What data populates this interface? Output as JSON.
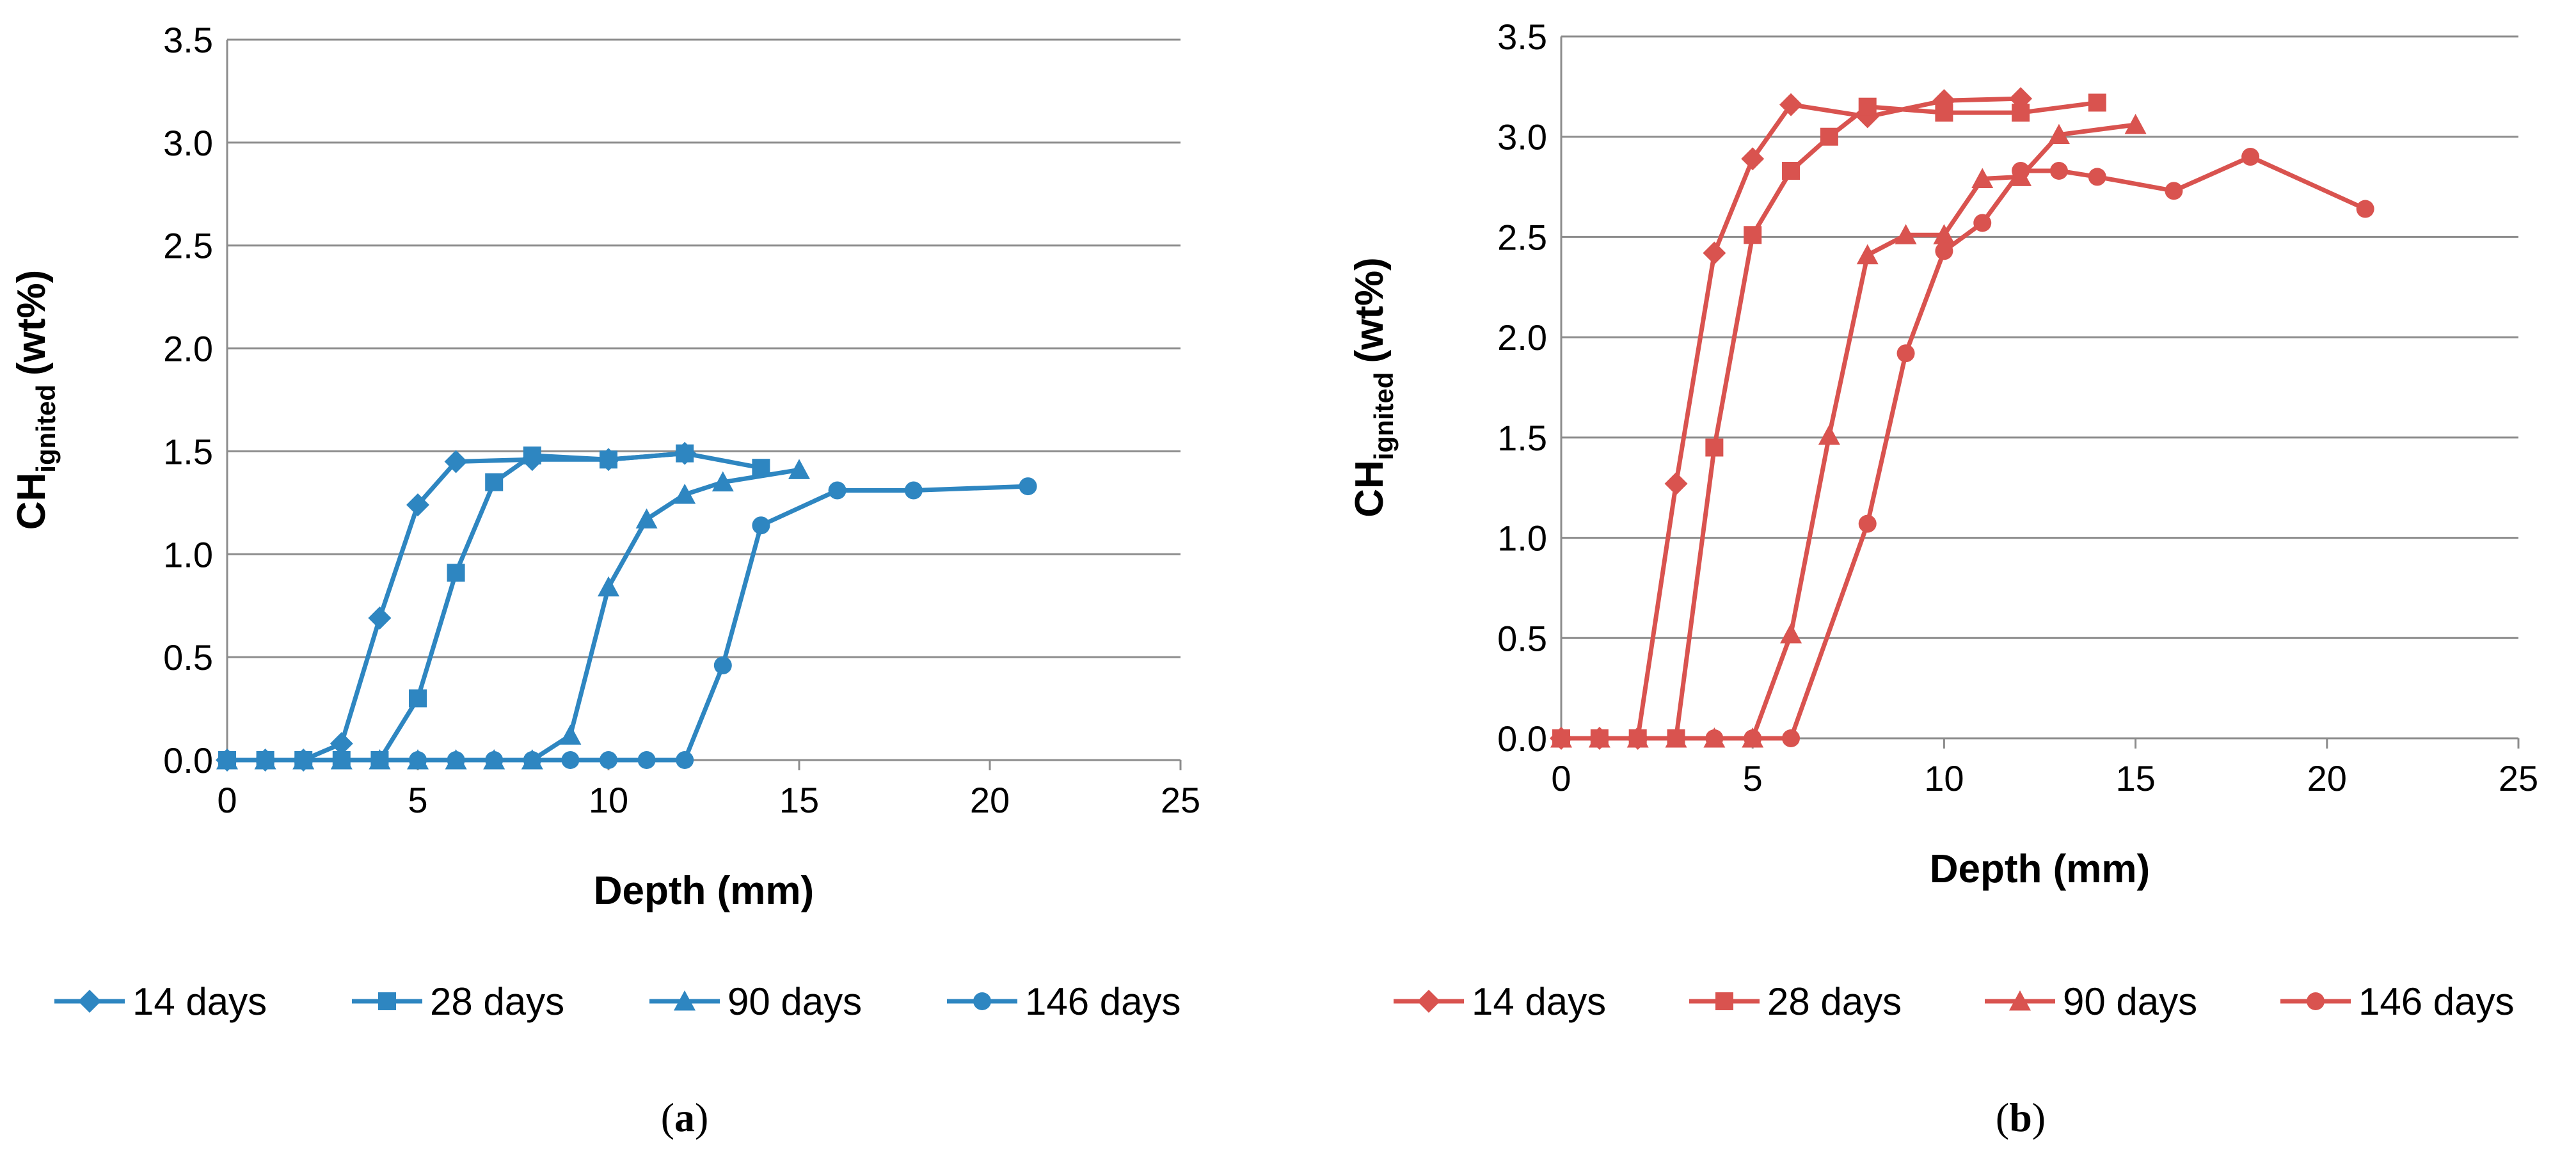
{
  "chart_data": [
    {
      "type": "line",
      "panel_label": "a",
      "color": "#2E86C1",
      "xlabel": "Depth (mm)",
      "ylabel_main": "CH",
      "ylabel_sub": "ignited",
      "ylabel_unit": "(wt%)",
      "xlim": [
        0,
        25
      ],
      "ylim": [
        0,
        3.5
      ],
      "x_ticks": [
        "0",
        "5",
        "10",
        "15",
        "20",
        "25"
      ],
      "y_ticks": [
        "0.0",
        "0.5",
        "1.0",
        "1.5",
        "2.0",
        "2.5",
        "3.0",
        "3.5"
      ],
      "grid": "horizontal",
      "legend_position": "bottom",
      "series": [
        {
          "name": "14 days",
          "marker": "diamond",
          "x": [
            0,
            1,
            2,
            3,
            4,
            5,
            6,
            8,
            10,
            12
          ],
          "y": [
            0.0,
            0.0,
            0.0,
            0.08,
            0.69,
            1.24,
            1.45,
            1.46,
            1.46,
            1.49
          ]
        },
        {
          "name": "28 days",
          "marker": "square",
          "x": [
            0,
            1,
            2,
            3,
            4,
            5,
            6,
            7,
            8,
            10,
            12,
            14
          ],
          "y": [
            0.0,
            0.0,
            0.0,
            0.0,
            0.0,
            0.3,
            0.91,
            1.35,
            1.48,
            1.46,
            1.49,
            1.42
          ]
        },
        {
          "name": "90 days",
          "marker": "triangle",
          "x": [
            0,
            1,
            2,
            3,
            4,
            5,
            6,
            7,
            8,
            9,
            10,
            11,
            12,
            13,
            15
          ],
          "y": [
            0.0,
            0.0,
            0.0,
            0.0,
            0.0,
            0.0,
            0.0,
            0.0,
            0.0,
            0.12,
            0.84,
            1.17,
            1.29,
            1.35,
            1.41
          ]
        },
        {
          "name": "146 days",
          "marker": "circle",
          "x": [
            0,
            1,
            2,
            3,
            4,
            5,
            6,
            7,
            8,
            9,
            10,
            11,
            12,
            13,
            14,
            16,
            18,
            21
          ],
          "y": [
            0.0,
            0.0,
            0.0,
            0.0,
            0.0,
            0.0,
            0.0,
            0.0,
            0.0,
            0.0,
            0.0,
            0.0,
            0.0,
            0.46,
            1.14,
            1.31,
            1.31,
            1.33
          ]
        }
      ]
    },
    {
      "type": "line",
      "panel_label": "b",
      "color": "#D9534F",
      "xlabel": "Depth (mm)",
      "ylabel_main": "CH",
      "ylabel_sub": "ignited",
      "ylabel_unit": "(wt%)",
      "xlim": [
        0,
        25
      ],
      "ylim": [
        0,
        3.5
      ],
      "x_ticks": [
        "0",
        "5",
        "10",
        "15",
        "20",
        "25"
      ],
      "y_ticks": [
        "0.0",
        "0.5",
        "1.0",
        "1.5",
        "2.0",
        "2.5",
        "3.0",
        "3.5"
      ],
      "grid": "horizontal",
      "legend_position": "bottom",
      "series": [
        {
          "name": "14 days",
          "marker": "diamond",
          "x": [
            0,
            1,
            2,
            3,
            4,
            5,
            6,
            8,
            10,
            12
          ],
          "y": [
            0.0,
            0.0,
            0.0,
            1.27,
            2.42,
            2.89,
            3.16,
            3.1,
            3.18,
            3.19
          ]
        },
        {
          "name": "28 days",
          "marker": "square",
          "x": [
            0,
            1,
            2,
            3,
            4,
            5,
            6,
            7,
            8,
            10,
            12,
            14
          ],
          "y": [
            0.0,
            0.0,
            0.0,
            0.0,
            1.45,
            2.51,
            2.83,
            3.0,
            3.15,
            3.12,
            3.12,
            3.17
          ]
        },
        {
          "name": "90 days",
          "marker": "triangle",
          "x": [
            0,
            1,
            2,
            3,
            4,
            5,
            6,
            7,
            8,
            9,
            10,
            11,
            12,
            13,
            15
          ],
          "y": [
            0.0,
            0.0,
            0.0,
            0.0,
            0.0,
            0.0,
            0.52,
            1.51,
            2.41,
            2.51,
            2.51,
            2.79,
            2.8,
            3.01,
            3.06
          ]
        },
        {
          "name": "146 days",
          "marker": "circle",
          "x": [
            0,
            1,
            2,
            3,
            4,
            5,
            6,
            8,
            9,
            10,
            11,
            12,
            13,
            14,
            16,
            18,
            21
          ],
          "y": [
            0.0,
            0.0,
            0.0,
            0.0,
            0.0,
            0.0,
            0.0,
            1.07,
            1.92,
            2.43,
            2.57,
            2.83,
            2.83,
            2.8,
            2.73,
            2.9,
            2.64
          ]
        }
      ]
    }
  ]
}
